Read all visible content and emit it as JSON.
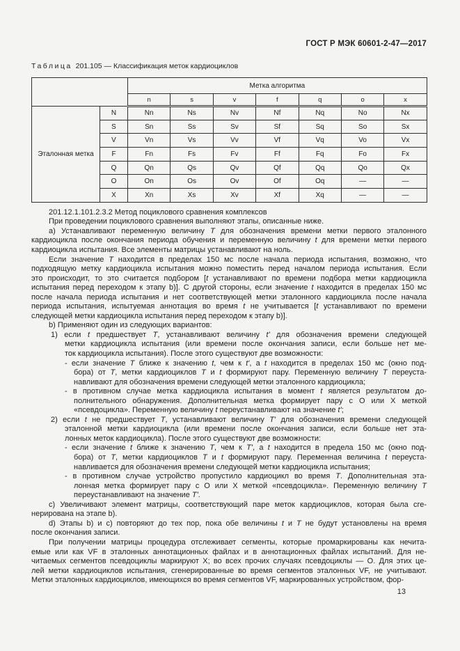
{
  "page": {
    "standard_ref": "ГОСТ Р МЭК 60601-2-47—2017",
    "page_number": "13"
  },
  "table": {
    "caption_word": "Таблица",
    "caption_rest": "201.105 — Классификация меток кардиоциклов",
    "col_group_label": "Метка алгоритма",
    "row_group_label": "Эталонная метка",
    "col_headers": [
      "n",
      "s",
      "v",
      "f",
      "q",
      "o",
      "x"
    ],
    "rows": [
      {
        "label": "N",
        "cells": [
          "Nn",
          "Ns",
          "Nv",
          "Nf",
          "Nq",
          "No",
          "Nx"
        ]
      },
      {
        "label": "S",
        "cells": [
          "Sn",
          "Ss",
          "Sv",
          "Sf",
          "Sq",
          "So",
          "Sx"
        ]
      },
      {
        "label": "V",
        "cells": [
          "Vn",
          "Vs",
          "Vv",
          "Vf",
          "Vq",
          "Vo",
          "Vx"
        ]
      },
      {
        "label": "F",
        "cells": [
          "Fn",
          "Fs",
          "Fv",
          "Ff",
          "Fq",
          "Fo",
          "Fx"
        ]
      },
      {
        "label": "Q",
        "cells": [
          "Qn",
          "Qs",
          "Qv",
          "Qf",
          "Qq",
          "Qo",
          "Qx"
        ]
      },
      {
        "label": "O",
        "cells": [
          "On",
          "Os",
          "Ov",
          "Of",
          "Oq",
          "—",
          "—"
        ]
      },
      {
        "label": "X",
        "cells": [
          "Xn",
          "Xs",
          "Xv",
          "Xf",
          "Xq",
          "—",
          "—"
        ]
      }
    ]
  },
  "body": {
    "lines": [
      {
        "c": "L1",
        "t": "201.12.1.101.2.3.2 Метод поциклового сравнения комплексов"
      },
      {
        "c": "L1",
        "t": "При проведении поциклового сравнения выполняют этапы, описанные ниже."
      },
      {
        "c": "L1 j",
        "t": "a) Устанавливают переменную величину *T* для обозначения времени метки первого эталонного"
      },
      {
        "c": "L0 j",
        "t": "кардиоцикла после окончания периода обучения и переменную величину *t* для времени метки первого"
      },
      {
        "c": "L0",
        "t": "кардиоцикла испытания. Все элементы матрицы устанавливают на ноль."
      },
      {
        "c": "L1 j",
        "t": "Если значение *T* находится в пределах 150 мс после начала периода испытания, возможно, что"
      },
      {
        "c": "L0 j",
        "t": "подходящую метку кардиоцикла испытания можно поместить перед началом периода испытания. Если"
      },
      {
        "c": "L0 j",
        "t": "это происходит, то это считается подбором [*t* устанавливают по времени подбора метки кардиоцикла"
      },
      {
        "c": "L0 j",
        "t": "испытания перед переходом к этапу b)]. С другой стороны, если значение *t* находится в пределах 150 мс"
      },
      {
        "c": "L0 j",
        "t": "после начала периода испытания и нет соответствующей метки эталонного кардиоцикла после начала"
      },
      {
        "c": "L0 j",
        "t": "периода испытания, испытуемая аннотация во время *t* не учитывается [*t* устанавливают по времени"
      },
      {
        "c": "L0",
        "t": "следующей метки кардиоцикла испытания перед переходом к этапу b)]."
      },
      {
        "c": "L1",
        "t": "b) Применяют один из следующих вариантов:"
      },
      {
        "c": "Lif j",
        "t": "1) если *t* предшествует *T*, устанавливают величину *t'* для обозначения времени следующей"
      },
      {
        "c": "Lic j",
        "t": "метки кардиоцикла испытания (или времени после окончания записи, если больше нет ме-"
      },
      {
        "c": "Lic",
        "t": "ток кардиоцикла испытания). После этого существуют две возможности:"
      },
      {
        "c": "Lbf j",
        "t": "- если значение *T* ближе к значению *t*, чем к *t'*, а *t* находится в пределах 150 мс (окно под-"
      },
      {
        "c": "Lbc j",
        "t": "бора) от *T*, метки кардиоциклов *T* и *t* формируют пару. Переменную величину *T* переуста-"
      },
      {
        "c": "Lbc",
        "t": "навливают для обозначения времени следующей метки эталонного кардиоцикла;"
      },
      {
        "c": "Lbf j",
        "t": "- в противном случае метка кардиоцикла испытания в момент *t* является результатом до-"
      },
      {
        "c": "Lbc j",
        "t": "полнительного обнаружения. Дополнительная метка формирует пару с O или X меткой"
      },
      {
        "c": "Lbc",
        "t": "«псевдоцикла». Переменную величину *t* переустанавливают на значение *t'*;"
      },
      {
        "c": "Lif j",
        "t": "2) если *t* не предшествует *T*, устанавливают величину *T'* для обозначения времени следующей"
      },
      {
        "c": "Lic j",
        "t": "эталонной метки кардиоцикла (или времени после окончания записи, если больше нет эта-"
      },
      {
        "c": "Lic",
        "t": "лонных меток кардиоцикла). После этого существуют две возможности:"
      },
      {
        "c": "Lbf j",
        "t": "- если значение *t* ближе к значению *T*, чем к *T'*, а *t* находится в предела 150 мс (окно под-"
      },
      {
        "c": "Lbc j",
        "t": "бора) от *T*, метки кардиоциклов *T* и *t* формируют пару. Переменная величина *t* переуста-"
      },
      {
        "c": "Lbc",
        "t": "навливается для обозначения времени следующей метки кардиоцикла испытания;"
      },
      {
        "c": "Lbf j",
        "t": "- в противном случае устройство пропустило кардиоцикл во время *T*. Дополнительная эта-"
      },
      {
        "c": "Lbc j",
        "t": "лонная метка формирует пару с O или X меткой «псевдоцикла». Переменную величину *T*"
      },
      {
        "c": "Lbc",
        "t": "переустанавливают на значение *T'*."
      },
      {
        "c": "L1 j",
        "t": "c) Увеличивают элемент матрицы, соответствующий паре меток кардиоциклов, которая была сге-"
      },
      {
        "c": "L0",
        "t": "нерирована на этапе b)."
      },
      {
        "c": "L1 j",
        "t": "d) Этапы b) и c) повторяют до тех пор, пока обе величины *t* и *T* не будут установлены на время"
      },
      {
        "c": "L0",
        "t": "после окончания записи."
      },
      {
        "c": "L1 j",
        "t": "При получении матрицы процедура отслеживает сегменты, которые промаркированы как нечита-"
      },
      {
        "c": "L0 j",
        "t": "емые или как VF в эталонных аннотационных файлах и в аннотационных файлах испытаний. Для не-"
      },
      {
        "c": "L0 j",
        "t": "читаемых сегментов псевдоциклы маркируют X; во всех прочих случаях псевдоциклы — O. Для этих це-"
      },
      {
        "c": "L0 j",
        "t": "лей метки кардиоциклов испытания, сгенерированные во время сегментов эталонных VF, не учитывают."
      },
      {
        "c": "L0",
        "t": "Метки эталонных кардиоциклов, имеющихся во время сегментов VF, маркированных устройством, фор-"
      }
    ]
  }
}
